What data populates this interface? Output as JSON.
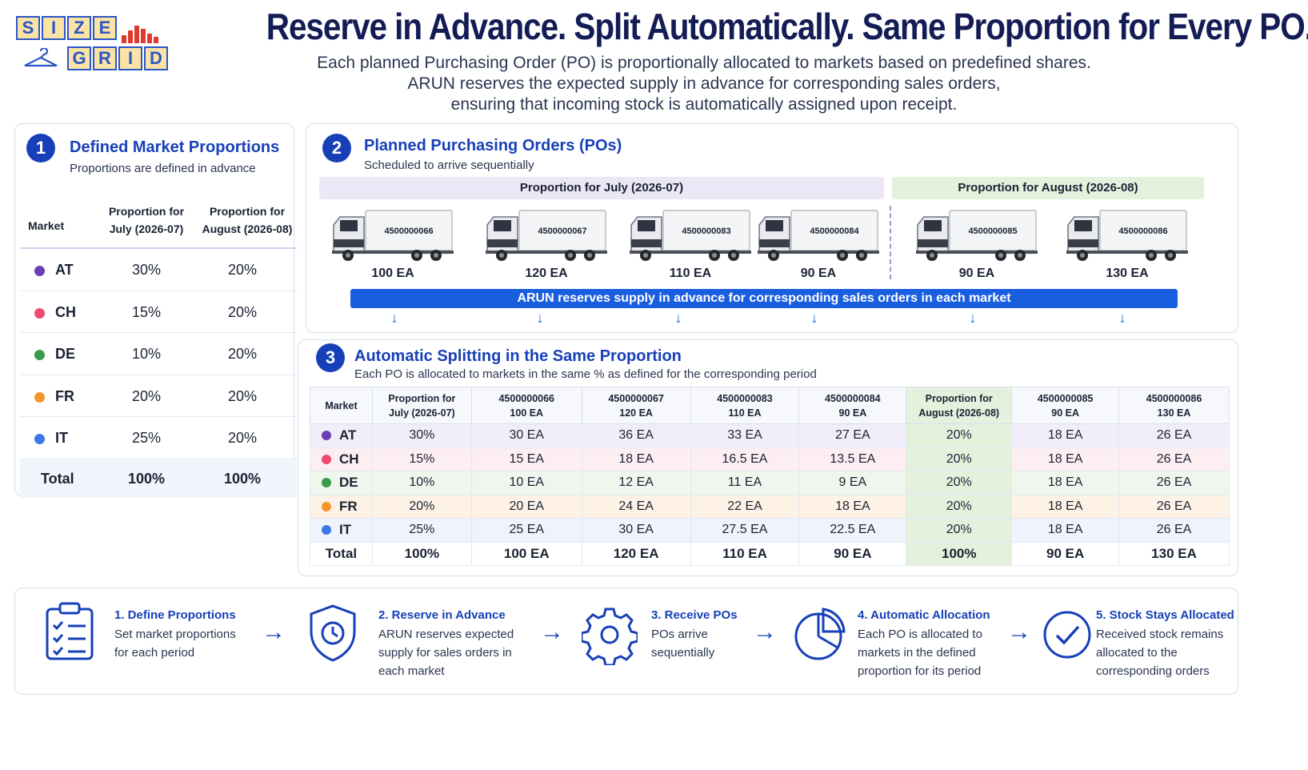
{
  "logo": {
    "letters_top": [
      "S",
      "I",
      "Z",
      "E"
    ],
    "letters_bottom": [
      "G",
      "R",
      "I",
      "D"
    ]
  },
  "header": {
    "title": "Reserve in Advance. Split Automatically. Same Proportion for Every PO.",
    "subtitle_lines": [
      "Each planned Purchasing Order (PO) is proportionally allocated to markets based on predefined shares.",
      "ARUN reserves the expected supply in advance for corresponding sales orders,",
      "ensuring that incoming stock is automatically assigned upon receipt."
    ]
  },
  "colors": {
    "accent": "#1740b8",
    "july": "#ece7f7",
    "august": "#e3f1dd",
    "AT": "#6a3fb5",
    "CH": "#ef4a73",
    "DE": "#3a9a4d",
    "FR": "#f5962a",
    "IT": "#3a78e8"
  },
  "panel1": {
    "number": "1",
    "title": "Defined Market Proportions",
    "subtitle": "Proportions are defined in advance",
    "headers": {
      "market": "Market",
      "july": [
        "Proportion for",
        "July (2026-07)"
      ],
      "august": [
        "Proportion for",
        "August (2026-08)"
      ]
    },
    "rows": [
      {
        "market": "AT",
        "july": "30%",
        "august": "20%"
      },
      {
        "market": "CH",
        "july": "15%",
        "august": "20%"
      },
      {
        "market": "DE",
        "july": "10%",
        "august": "20%"
      },
      {
        "market": "FR",
        "july": "20%",
        "august": "20%"
      },
      {
        "market": "IT",
        "july": "25%",
        "august": "20%"
      }
    ],
    "total": {
      "label": "Total",
      "july": "100%",
      "august": "100%"
    }
  },
  "panel2": {
    "number": "2",
    "title": "Planned Purchasing Orders (POs)",
    "subtitle": "Scheduled to arrive sequentially",
    "july_label": "Proportion for July (2026-07)",
    "august_label": "Proportion for August (2026-08)",
    "trucks": [
      {
        "po": "4500000066",
        "qty": "100 EA"
      },
      {
        "po": "4500000067",
        "qty": "120 EA"
      },
      {
        "po": "4500000083",
        "qty": "110 EA"
      },
      {
        "po": "4500000084",
        "qty": "90 EA"
      },
      {
        "po": "4500000085",
        "qty": "90 EA"
      },
      {
        "po": "4500000086",
        "qty": "130 EA"
      }
    ],
    "reserve_text": "ARUN reserves supply in advance for corresponding sales orders in each market"
  },
  "panel3": {
    "number": "3",
    "title": "Automatic Splitting in the Same Proportion",
    "subtitle": "Each PO is allocated to markets in the same % as defined for the corresponding period",
    "headers": {
      "market": "Market",
      "july": [
        "Proportion for",
        "July (2026-07)"
      ],
      "po66": [
        "4500000066",
        "100 EA"
      ],
      "po67": [
        "4500000067",
        "120 EA"
      ],
      "po83": [
        "4500000083",
        "110 EA"
      ],
      "po84": [
        "4500000084",
        "90 EA"
      ],
      "august": [
        "Proportion for",
        "August (2026-08)"
      ],
      "po85": [
        "4500000085",
        "90 EA"
      ],
      "po86": [
        "4500000086",
        "130 EA"
      ]
    },
    "rows": [
      {
        "market": "AT",
        "cells": [
          "30%",
          "30 EA",
          "36 EA",
          "33 EA",
          "27 EA",
          "20%",
          "18 EA",
          "26 EA"
        ]
      },
      {
        "market": "CH",
        "cells": [
          "15%",
          "15 EA",
          "18 EA",
          "16.5 EA",
          "13.5 EA",
          "20%",
          "18 EA",
          "26 EA"
        ]
      },
      {
        "market": "DE",
        "cells": [
          "10%",
          "10 EA",
          "12 EA",
          "11 EA",
          "9 EA",
          "20%",
          "18 EA",
          "26 EA"
        ]
      },
      {
        "market": "FR",
        "cells": [
          "20%",
          "20 EA",
          "24 EA",
          "22 EA",
          "18 EA",
          "20%",
          "18 EA",
          "26 EA"
        ]
      },
      {
        "market": "IT",
        "cells": [
          "25%",
          "25 EA",
          "30 EA",
          "27.5 EA",
          "22.5 EA",
          "20%",
          "18 EA",
          "26 EA"
        ]
      }
    ],
    "total": {
      "label": "Total",
      "cells": [
        "100%",
        "100 EA",
        "120 EA",
        "110 EA",
        "90 EA",
        "100%",
        "90 EA",
        "130 EA"
      ]
    }
  },
  "steps": [
    {
      "icon": "clipboard-checklist-icon",
      "title": "1. Define Proportions",
      "desc": "Set market proportions for each period"
    },
    {
      "icon": "shield-clock-icon",
      "title": "2. Reserve in Advance",
      "desc": "ARUN reserves expected supply for sales orders in each market"
    },
    {
      "icon": "gear-icon",
      "title": "3. Receive POs",
      "desc": "POs arrive sequentially"
    },
    {
      "icon": "pie-chart-icon",
      "title": "4. Automatic Allocation",
      "desc": "Each PO is allocated to markets in the defined proportion for its period"
    },
    {
      "icon": "check-circle-icon",
      "title": "5. Stock Stays Allocated",
      "desc": "Received stock remains allocated to the corresponding orders"
    }
  ]
}
